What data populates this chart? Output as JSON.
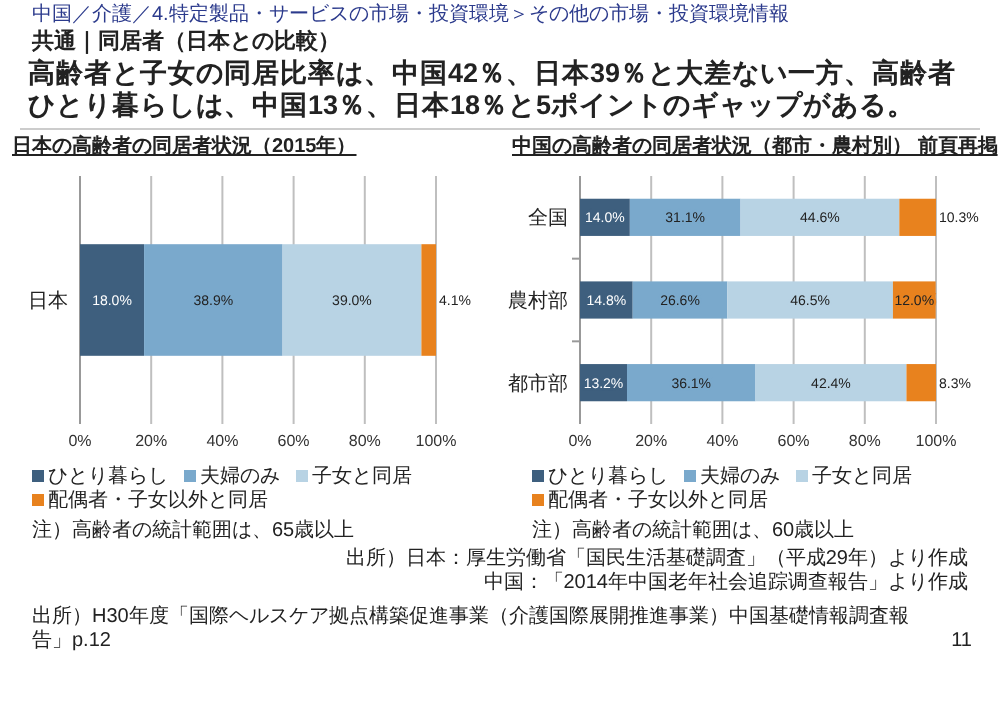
{
  "chart_data": [
    {
      "type": "other",
      "title": "共通｜同居者（日本との比較）",
      "subtitle": "高齢者と子女の同居比率は、中国42％、日本39％と大差ない一方、高齢者ひとり暮らしは、中国13％、日本18％と5ポイントのギャップがある。",
      "annotations": [
        "中国／介護／4.特定製品・サービスの市場・投資環境＞その他の市場・投資環境情報",
        "出所）日本：厚生労働省「国民生活基礎調査」（平成29年）より作成",
        "中国：「2014年中国老年社会追踪调查報告」より作成",
        "出所）H30年度「国際ヘルスケア拠点構築促進事業（介護国際展開推進事業）中国基礎情報調査報告」p.12",
        "11"
      ]
    },
    {
      "type": "bar",
      "orientation": "horizontal",
      "stacked": true,
      "title": "日本の高齢者の同居者状況（2015年）",
      "categories": [
        "日本"
      ],
      "series": [
        {
          "name": "ひとり暮らし",
          "color": "#3e5f7e",
          "values": [
            18.0
          ],
          "value_labels": [
            "18.0%"
          ]
        },
        {
          "name": "夫婦のみ",
          "color": "#7aa9cc",
          "values": [
            38.9
          ],
          "value_labels": [
            "38.9%"
          ]
        },
        {
          "name": "子女と同居",
          "color": "#b8d3e4",
          "values": [
            39.0
          ],
          "value_labels": [
            "39.0%"
          ]
        },
        {
          "name": "配偶者・子女以外と同居",
          "color": "#e8821e",
          "values": [
            4.1
          ],
          "value_labels": [
            "4.1%"
          ]
        }
      ],
      "xlim": [
        0,
        100
      ],
      "xticks": [
        {
          "value": 0,
          "label": "0%"
        },
        {
          "value": 20,
          "label": "20%"
        },
        {
          "value": 40,
          "label": "40%"
        },
        {
          "value": 60,
          "label": "60%"
        },
        {
          "value": 80,
          "label": "80%"
        },
        {
          "value": 100,
          "label": "100%"
        }
      ],
      "grid": "x",
      "legend": "bottom",
      "annotations": [
        "注）高齢者の統計範囲は、65歳以上"
      ]
    },
    {
      "type": "bar",
      "orientation": "horizontal",
      "stacked": true,
      "title": "中国の高齢者の同居者状況（都市・農村別） 前頁再掲",
      "categories": [
        "全国",
        "農村部",
        "都市部"
      ],
      "series": [
        {
          "name": "ひとり暮らし",
          "color": "#3e5f7e",
          "values": [
            14.0,
            14.8,
            13.2
          ],
          "value_labels": [
            "14.0%",
            "14.8%",
            "13.2%"
          ]
        },
        {
          "name": "夫婦のみ",
          "color": "#7aa9cc",
          "values": [
            31.1,
            26.6,
            36.1
          ],
          "value_labels": [
            "31.1%",
            "26.6%",
            "36.1%"
          ]
        },
        {
          "name": "子女と同居",
          "color": "#b8d3e4",
          "values": [
            44.6,
            46.5,
            42.4
          ],
          "value_labels": [
            "44.6%",
            "46.5%",
            "42.4%"
          ]
        },
        {
          "name": "配偶者・子女以外と同居",
          "color": "#e8821e",
          "values": [
            10.3,
            12.0,
            8.3
          ],
          "value_labels": [
            "10.3%",
            "12.0%",
            "8.3%"
          ]
        }
      ],
      "xlim": [
        0,
        100
      ],
      "xticks": [
        {
          "value": 0,
          "label": "0%"
        },
        {
          "value": 20,
          "label": "20%"
        },
        {
          "value": 40,
          "label": "40%"
        },
        {
          "value": 60,
          "label": "60%"
        },
        {
          "value": 80,
          "label": "80%"
        },
        {
          "value": 100,
          "label": "100%"
        }
      ],
      "grid": "x",
      "legend": "bottom",
      "annotations": [
        "注）高齢者の統計範囲は、60歳以上"
      ]
    }
  ]
}
